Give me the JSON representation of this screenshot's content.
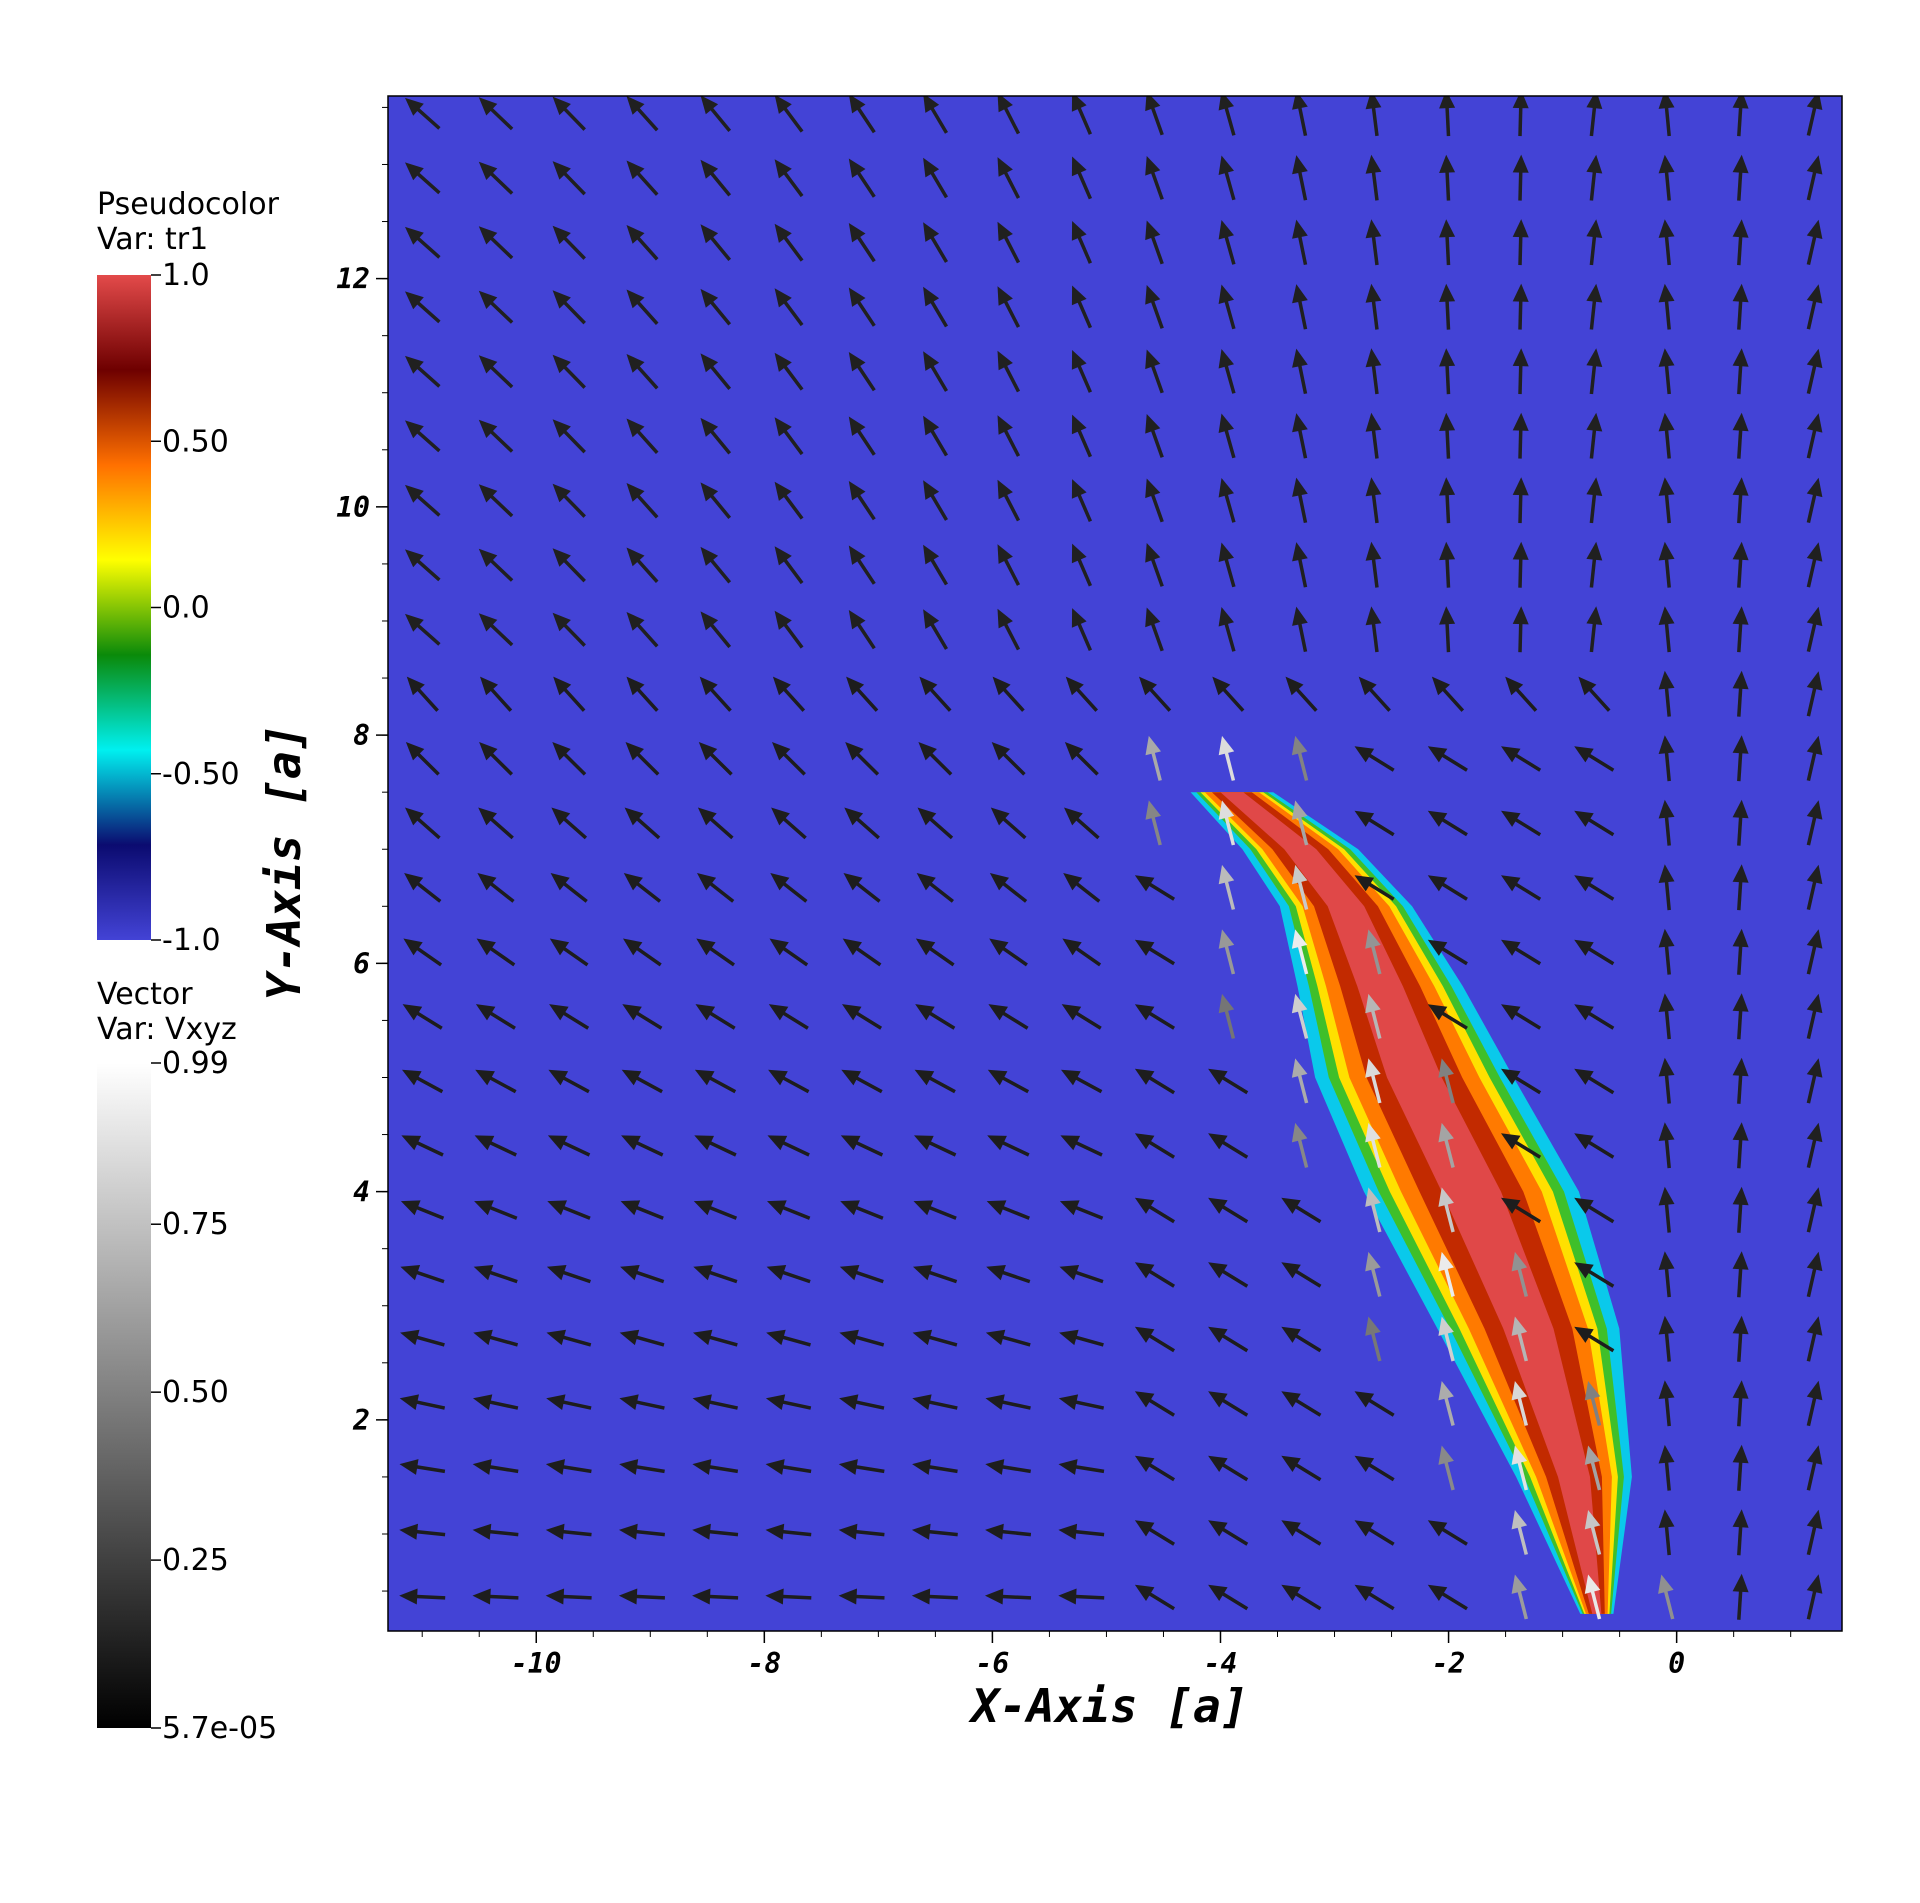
{
  "chart_data": {
    "type": "heatmap",
    "title": "",
    "xlabel": "X-Axis [a]",
    "ylabel": "Y-Axis [a]",
    "xlim": [
      -11.3,
      1.45
    ],
    "ylim": [
      0.15,
      13.6
    ],
    "x_ticks": [
      {
        "value": -10,
        "label": "-10"
      },
      {
        "value": -8,
        "label": "-8"
      },
      {
        "value": -6,
        "label": "-6"
      },
      {
        "value": -4,
        "label": "-4"
      },
      {
        "value": -2,
        "label": "-2"
      },
      {
        "value": 0,
        "label": "0"
      }
    ],
    "y_ticks": [
      {
        "value": 2,
        "label": "2"
      },
      {
        "value": 4,
        "label": "4"
      },
      {
        "value": 6,
        "label": "6"
      },
      {
        "value": 8,
        "label": "8"
      },
      {
        "value": 10,
        "label": "10"
      },
      {
        "value": 12,
        "label": "12"
      }
    ],
    "background_value": -1.0,
    "legends": [
      {
        "name": "pseudocolor",
        "title_line1": "Pseudocolor",
        "title_line2": "Var: tr1",
        "range": [
          -1.0,
          1.0
        ],
        "ticks": [
          {
            "value": 1.0,
            "label": "1.0"
          },
          {
            "value": 0.5,
            "label": "0.50"
          },
          {
            "value": 0.0,
            "label": "0.0"
          },
          {
            "value": -0.5,
            "label": "-0.50"
          },
          {
            "value": -1.0,
            "label": "-1.0"
          }
        ],
        "colors": [
          "#4343d6",
          "#0b0b70",
          "#00f0f0",
          "#0a8a0a",
          "#ffff00",
          "#ff7000",
          "#6e0000",
          "#e34a4a"
        ]
      },
      {
        "name": "vector",
        "title_line1": "Vector",
        "title_line2": "Var: Vxyz",
        "range": [
          5.7e-05,
          0.99
        ],
        "ticks": [
          {
            "value": 0.99,
            "label": "0.99"
          },
          {
            "value": 0.75,
            "label": "0.75"
          },
          {
            "value": 0.5,
            "label": "0.50"
          },
          {
            "value": 0.25,
            "label": "0.25"
          },
          {
            "value": 5.7e-05,
            "label": "5.7e-05"
          }
        ],
        "colors": [
          "#000000",
          "#ffffff"
        ]
      }
    ],
    "jet_plume": {
      "spine_x": [
        -0.7,
        -0.9,
        -1.3,
        -1.8,
        -2.3,
        -2.6,
        -2.9,
        -3.3,
        -3.9
      ],
      "spine_y": [
        0.3,
        1.5,
        2.8,
        4.0,
        5.0,
        5.8,
        6.5,
        7.0,
        7.5
      ],
      "half_width": [
        0.1,
        0.35,
        0.55,
        0.65,
        0.6,
        0.5,
        0.4,
        0.35,
        0.25
      ]
    },
    "vector_field": {
      "x_range": [
        -11.0,
        1.2
      ],
      "y_range": [
        0.45,
        13.45
      ],
      "nx": 20,
      "ny": 24,
      "note": ""
    }
  }
}
